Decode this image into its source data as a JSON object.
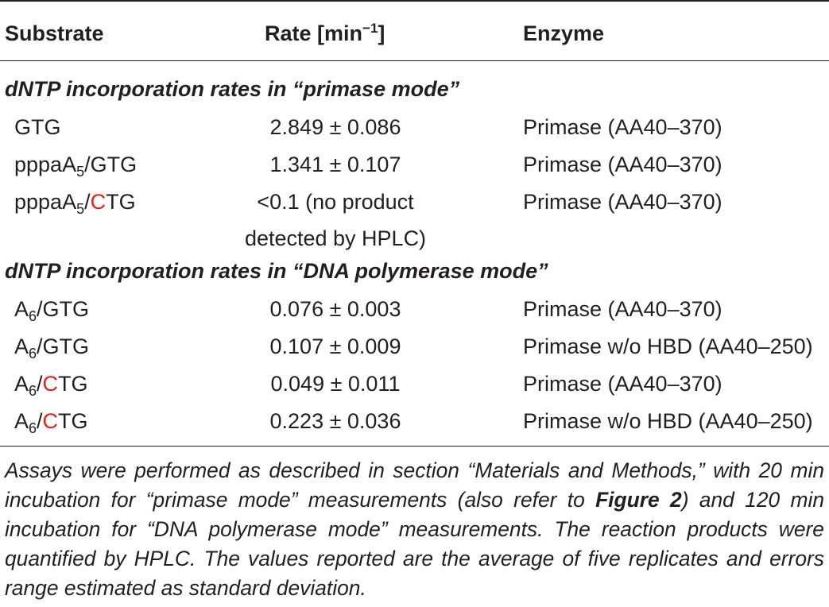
{
  "table": {
    "headers": {
      "substrate": "Substrate",
      "rate_prefix": "Rate [min",
      "rate_exp": "−1",
      "rate_suffix": "]",
      "enzyme": "Enzyme"
    },
    "sections": [
      {
        "title": "dNTP incorporation rates in “primase mode”",
        "rows": [
          {
            "substrate_pre": "",
            "substrate_base": "GTG",
            "substrate_sub": "",
            "substrate_slash": "",
            "substrate_red": "",
            "substrate_rest": "",
            "rate_line1": "2.849 ± 0.086",
            "rate_line2": "",
            "enzyme": "Primase (AA40–370)"
          },
          {
            "substrate_pre": "",
            "substrate_base": "pppaA",
            "substrate_sub": "5",
            "substrate_slash": "/",
            "substrate_red": "",
            "substrate_rest": "GTG",
            "rate_line1": "1.341 ± 0.107",
            "rate_line2": "",
            "enzyme": "Primase (AA40–370)"
          },
          {
            "substrate_pre": "",
            "substrate_base": "pppaA",
            "substrate_sub": "5",
            "substrate_slash": "/",
            "substrate_red": "C",
            "substrate_rest": "TG",
            "rate_line1": "<0.1 (no product",
            "rate_line2": "detected by HPLC)",
            "enzyme": "Primase (AA40–370)"
          }
        ]
      },
      {
        "title": "dNTP incorporation rates in “DNA polymerase mode”",
        "rows": [
          {
            "substrate_base": "A",
            "substrate_sub": "6",
            "substrate_slash": "/",
            "substrate_red": "",
            "substrate_rest": "GTG",
            "rate_line1": "0.076 ± 0.003",
            "enzyme": "Primase (AA40–370)"
          },
          {
            "substrate_base": "A",
            "substrate_sub": "6",
            "substrate_slash": "/",
            "substrate_red": "",
            "substrate_rest": "GTG",
            "rate_line1": "0.107 ± 0.009",
            "enzyme": "Primase w/o HBD (AA40–250)"
          },
          {
            "substrate_base": "A",
            "substrate_sub": "6",
            "substrate_slash": "/",
            "substrate_red": "C",
            "substrate_rest": "TG",
            "rate_line1": "0.049 ± 0.011",
            "enzyme": "Primase (AA40–370)"
          },
          {
            "substrate_base": "A",
            "substrate_sub": "6",
            "substrate_slash": "/",
            "substrate_red": "C",
            "substrate_rest": "TG",
            "rate_line1": "0.223 ± 0.036",
            "enzyme": "Primase w/o HBD (AA40–250)"
          }
        ]
      }
    ],
    "footnote": {
      "part1": "Assays were performed as described in section “Materials and Methods,” with 20 min incubation for “primase mode” measurements (also refer to ",
      "figure_ref": "Figure 2",
      "part2": ") and 120 min incubation for “DNA polymerase mode” measurements. The reaction products were quantified by HPLC. The values reported are the average of five replicates and errors range estimated as standard deviation."
    },
    "colors": {
      "text": "#231f20",
      "highlight": "#e2231a"
    }
  }
}
